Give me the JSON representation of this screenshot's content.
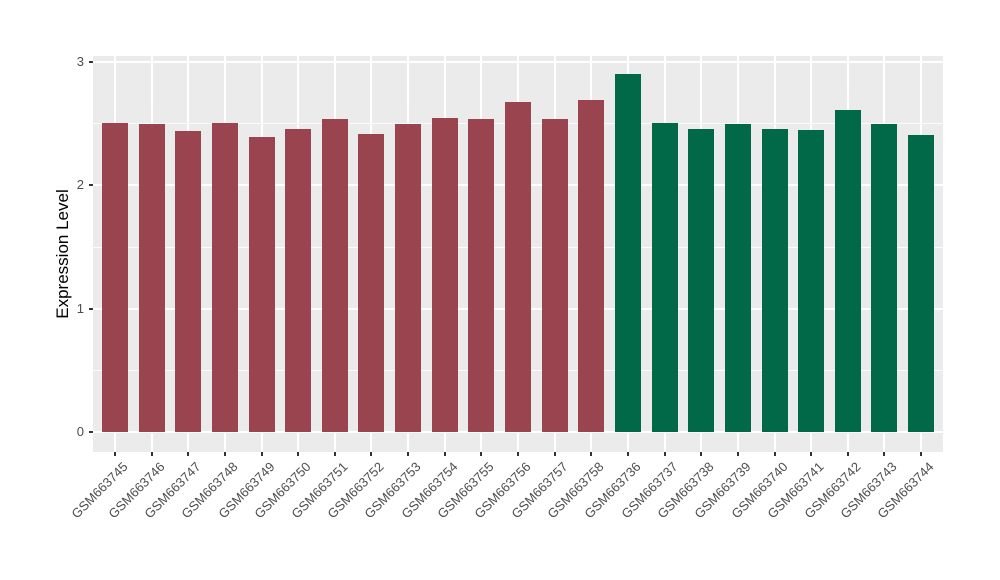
{
  "chart_data": {
    "type": "bar",
    "title": "",
    "xlabel": "",
    "ylabel": "Expression Level",
    "ylim": [
      0,
      3.05
    ],
    "yticks": [
      0,
      1,
      2,
      3
    ],
    "ytick_labels": [
      "0",
      "1",
      "2",
      "3"
    ],
    "yticks_minor": [
      0.5,
      1.5,
      2.5
    ],
    "grid": "horizontal major+minor white, vertical major white at each category, on gray panel",
    "panel_bg": "#EBEBEB",
    "legend_position": "none",
    "categories": [
      "GSM663745",
      "GSM663746",
      "GSM663747",
      "GSM663748",
      "GSM663749",
      "GSM663750",
      "GSM663751",
      "GSM663752",
      "GSM663753",
      "GSM663754",
      "GSM663755",
      "GSM663756",
      "GSM663757",
      "GSM663758",
      "GSM663736",
      "GSM663737",
      "GSM663738",
      "GSM663739",
      "GSM663740",
      "GSM663741",
      "GSM663742",
      "GSM663743",
      "GSM663744"
    ],
    "values": [
      2.51,
      2.5,
      2.44,
      2.51,
      2.39,
      2.46,
      2.54,
      2.42,
      2.5,
      2.55,
      2.54,
      2.68,
      2.54,
      2.69,
      2.9,
      2.51,
      2.46,
      2.5,
      2.46,
      2.45,
      2.61,
      2.5,
      2.41
    ],
    "bar_group": [
      0,
      0,
      0,
      0,
      0,
      0,
      0,
      0,
      0,
      0,
      0,
      0,
      0,
      0,
      1,
      1,
      1,
      1,
      1,
      1,
      1,
      1,
      1
    ],
    "group_colors": [
      "#9A4450",
      "#016947"
    ]
  }
}
